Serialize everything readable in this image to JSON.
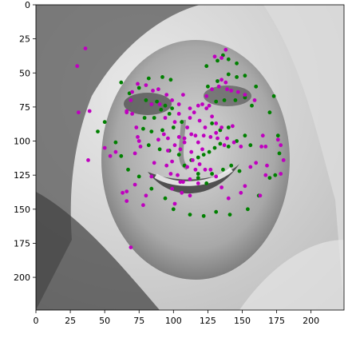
{
  "chart_data": {
    "type": "scatter",
    "title": "",
    "xlabel": "",
    "ylabel": "",
    "xlim": [
      0,
      224
    ],
    "ylim": [
      224,
      0
    ],
    "y_inverted": true,
    "grid": false,
    "background": "grayscale photograph of a smiling woman's face",
    "x_ticks": [
      0,
      25,
      50,
      75,
      100,
      125,
      150,
      175,
      200
    ],
    "y_ticks": [
      0,
      25,
      50,
      75,
      100,
      125,
      150,
      175,
      200
    ],
    "x_tick_labels": [
      "0",
      "25",
      "50",
      "75",
      "100",
      "125",
      "150",
      "175",
      "200"
    ],
    "y_tick_labels": [
      "0",
      "25",
      "50",
      "75",
      "100",
      "125",
      "150",
      "175",
      "200"
    ],
    "series": [
      {
        "color": "#008000",
        "points": [
          [
            62,
            57
          ],
          [
            68,
            65
          ],
          [
            75,
            61
          ],
          [
            82,
            54
          ],
          [
            92,
            53
          ],
          [
            98,
            55
          ],
          [
            80,
            70
          ],
          [
            88,
            71
          ],
          [
            94,
            74
          ],
          [
            99,
            76
          ],
          [
            84,
            73
          ],
          [
            79,
            83
          ],
          [
            86,
            83
          ],
          [
            91,
            77
          ],
          [
            97,
            80
          ],
          [
            78,
            91
          ],
          [
            84,
            93
          ],
          [
            92,
            92
          ],
          [
            100,
            90
          ],
          [
            106,
            86
          ],
          [
            82,
            103
          ],
          [
            90,
            106
          ],
          [
            97,
            107
          ],
          [
            104,
            110
          ],
          [
            108,
            118
          ],
          [
            113,
            114
          ],
          [
            118,
            112
          ],
          [
            122,
            110
          ],
          [
            126,
            108
          ],
          [
            130,
            105
          ],
          [
            134,
            102
          ],
          [
            140,
            104
          ],
          [
            146,
            100
          ],
          [
            152,
            96
          ],
          [
            156,
            103
          ],
          [
            118,
            127
          ],
          [
            124,
            131
          ],
          [
            128,
            124
          ],
          [
            136,
            121
          ],
          [
            142,
            118
          ],
          [
            148,
            122
          ],
          [
            125,
            60
          ],
          [
            132,
            56
          ],
          [
            140,
            51
          ],
          [
            146,
            53
          ],
          [
            152,
            52
          ],
          [
            160,
            60
          ],
          [
            131,
            71
          ],
          [
            137,
            70
          ],
          [
            145,
            70
          ],
          [
            152,
            68
          ],
          [
            157,
            74
          ],
          [
            128,
            87
          ],
          [
            134,
            92
          ],
          [
            140,
            90
          ],
          [
            118,
            124
          ],
          [
            170,
            79
          ],
          [
            173,
            67
          ],
          [
            176,
            96
          ],
          [
            177,
            109
          ],
          [
            174,
            125
          ],
          [
            170,
            127
          ],
          [
            162,
            140
          ],
          [
            154,
            150
          ],
          [
            141,
            154
          ],
          [
            131,
            152
          ],
          [
            122,
            155
          ],
          [
            112,
            154
          ],
          [
            100,
            150
          ],
          [
            94,
            142
          ],
          [
            84,
            135
          ],
          [
            75,
            126
          ],
          [
            67,
            121
          ],
          [
            62,
            111
          ],
          [
            58,
            101
          ],
          [
            50,
            86
          ],
          [
            45,
            93
          ],
          [
            124,
            45
          ],
          [
            132,
            41
          ],
          [
            140,
            40
          ],
          [
            146,
            43
          ],
          [
            136,
            37
          ]
        ]
      },
      {
        "color": "#bf00bf",
        "points": [
          [
            30,
            45
          ],
          [
            36,
            32
          ],
          [
            31,
            79
          ],
          [
            39,
            78
          ],
          [
            38,
            114
          ],
          [
            50,
            105
          ],
          [
            54,
            111
          ],
          [
            66,
            78
          ],
          [
            70,
            80
          ],
          [
            73,
            90
          ],
          [
            75,
            100
          ],
          [
            72,
            109
          ],
          [
            63,
            138
          ],
          [
            66,
            137
          ],
          [
            66,
            144
          ],
          [
            69,
            178
          ],
          [
            78,
            147
          ],
          [
            80,
            140
          ],
          [
            72,
            132
          ],
          [
            58,
            108
          ],
          [
            86,
            116
          ],
          [
            89,
            99
          ],
          [
            93,
            95
          ],
          [
            96,
            107
          ],
          [
            99,
            115
          ],
          [
            98,
            124
          ],
          [
            103,
            125
          ],
          [
            107,
            130
          ],
          [
            112,
            128
          ],
          [
            118,
            131
          ],
          [
            112,
            140
          ],
          [
            106,
            138
          ],
          [
            101,
            146
          ],
          [
            96,
            98
          ],
          [
            101,
            103
          ],
          [
            105,
            106
          ],
          [
            108,
            98
          ],
          [
            110,
            90
          ],
          [
            112,
            83
          ],
          [
            115,
            79
          ],
          [
            118,
            74
          ],
          [
            121,
            73
          ],
          [
            124,
            76
          ],
          [
            128,
            82
          ],
          [
            131,
            87
          ],
          [
            135,
            90
          ],
          [
            139,
            98
          ],
          [
            144,
            101
          ],
          [
            149,
            104
          ],
          [
            110,
            119
          ],
          [
            114,
            114
          ],
          [
            119,
            117
          ],
          [
            123,
            121
          ],
          [
            127,
            121
          ],
          [
            131,
            126
          ],
          [
            135,
            134
          ],
          [
            140,
            142
          ],
          [
            149,
            138
          ],
          [
            152,
            133
          ],
          [
            156,
            119
          ],
          [
            163,
            140
          ],
          [
            168,
            118
          ],
          [
            178,
            124
          ],
          [
            180,
            114
          ],
          [
            178,
            103
          ],
          [
            176,
            99
          ],
          [
            165,
            96
          ],
          [
            167,
            104
          ],
          [
            143,
            89
          ],
          [
            128,
            62
          ],
          [
            133,
            60
          ],
          [
            138,
            57
          ],
          [
            142,
            63
          ],
          [
            147,
            64
          ],
          [
            152,
            66
          ],
          [
            159,
            70
          ],
          [
            126,
            74
          ],
          [
            123,
            90
          ],
          [
            131,
            94
          ],
          [
            95,
            118
          ],
          [
            84,
            126
          ],
          [
            99,
            135
          ],
          [
            105,
            130
          ],
          [
            116,
            121
          ],
          [
            113,
            108
          ],
          [
            122,
            96
          ],
          [
            127,
            97
          ],
          [
            132,
            98
          ],
          [
            137,
            103
          ],
          [
            160,
            116
          ],
          [
            164,
            104
          ],
          [
            167,
            125
          ],
          [
            121,
            106
          ],
          [
            118,
            101
          ],
          [
            116,
            96
          ],
          [
            119,
            85
          ],
          [
            113,
            95
          ],
          [
            108,
            101
          ],
          [
            104,
            97
          ],
          [
            135,
            55
          ],
          [
            135,
            39
          ],
          [
            130,
            38
          ],
          [
            138,
            33
          ],
          [
            139,
            62
          ],
          [
            74,
            97
          ],
          [
            76,
            104
          ],
          [
            95,
            66
          ],
          [
            99,
            70
          ],
          [
            104,
            73
          ],
          [
            107,
            66
          ],
          [
            89,
            62
          ],
          [
            85,
            63
          ],
          [
            80,
            59
          ],
          [
            74,
            58
          ],
          [
            70,
            64
          ],
          [
            66,
            79
          ],
          [
            69,
            70
          ],
          [
            84,
            73
          ],
          [
            90,
            73
          ],
          [
            94,
            83
          ],
          [
            101,
            86
          ],
          [
            104,
            80
          ],
          [
            112,
            76
          ],
          [
            124,
            67
          ]
        ]
      }
    ]
  }
}
